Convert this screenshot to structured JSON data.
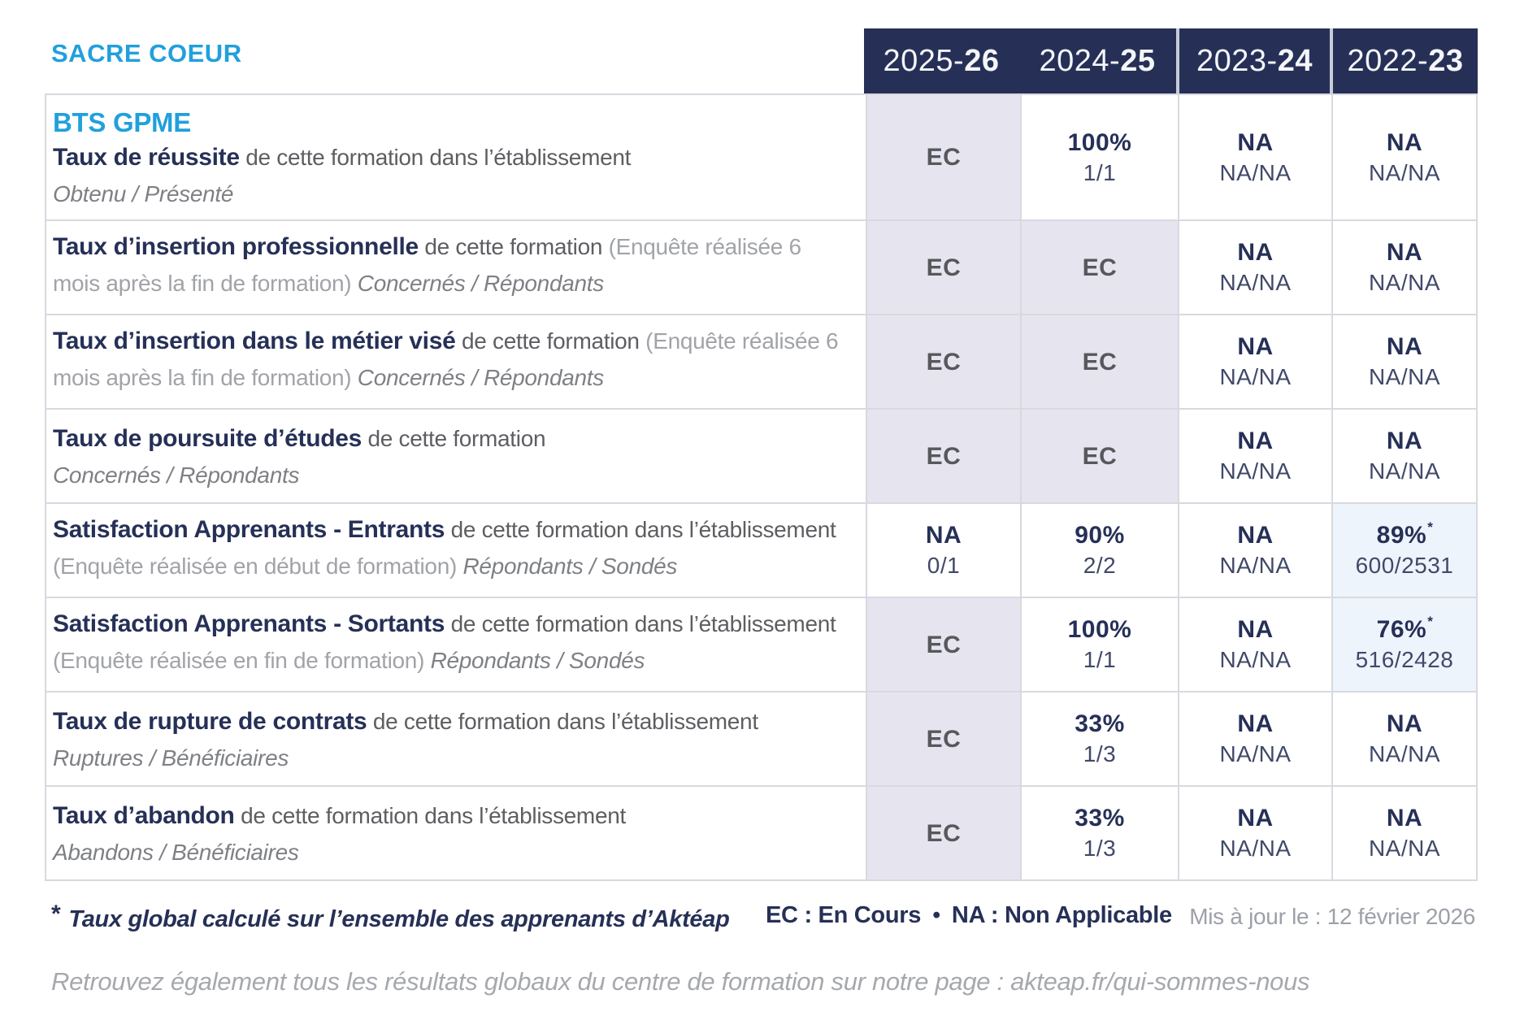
{
  "colors": {
    "navy": "#263057",
    "bright_blue": "#21a0dc",
    "lavender": "#e6e5ef",
    "light_blue": "#eef4fb"
  },
  "header": {
    "school": "SACRE COEUR",
    "years": [
      {
        "prefix": "2025-",
        "suffix": "26"
      },
      {
        "prefix": "2024-",
        "suffix": "25"
      },
      {
        "prefix": "2023-",
        "suffix": "24"
      },
      {
        "prefix": "2022-",
        "suffix": "23"
      }
    ]
  },
  "table": {
    "star_symbol": "*",
    "rows": [
      {
        "heading": "BTS GPME",
        "segments": [
          {
            "s": "title",
            "t": "Taux de réussite"
          },
          {
            "s": "desc",
            "t": " de cette formation dans l’établissement"
          }
        ],
        "sub_line": "Obtenu / Présenté",
        "cells": [
          {
            "type": "ec",
            "main": "EC"
          },
          {
            "type": "plain",
            "main": "100%",
            "sub": "1/1"
          },
          {
            "type": "plain",
            "main": "NA",
            "sub": "NA/NA"
          },
          {
            "type": "plain",
            "main": "NA",
            "sub": "NA/NA"
          }
        ]
      },
      {
        "segments": [
          {
            "s": "title",
            "t": "Taux d’insertion professionnelle"
          },
          {
            "s": "desc",
            "t": " de cette formation "
          },
          {
            "s": "paren",
            "t": "(Enquête réalisée 6 mois après la fin de formation) "
          },
          {
            "s": "it",
            "t": "Concernés / Répondants"
          }
        ],
        "sub_line": null,
        "cells": [
          {
            "type": "ec",
            "main": "EC"
          },
          {
            "type": "ec",
            "main": "EC"
          },
          {
            "type": "plain",
            "main": "NA",
            "sub": "NA/NA"
          },
          {
            "type": "plain",
            "main": "NA",
            "sub": "NA/NA"
          }
        ]
      },
      {
        "segments": [
          {
            "s": "title",
            "t": "Taux d’insertion dans le métier visé"
          },
          {
            "s": "desc",
            "t": " de cette formation "
          },
          {
            "s": "paren",
            "t": "(Enquête réalisée 6 mois après la fin de formation) "
          },
          {
            "s": "it",
            "t": "Concernés / Répondants"
          }
        ],
        "sub_line": null,
        "cells": [
          {
            "type": "ec",
            "main": "EC"
          },
          {
            "type": "ec",
            "main": "EC"
          },
          {
            "type": "plain",
            "main": "NA",
            "sub": "NA/NA"
          },
          {
            "type": "plain",
            "main": "NA",
            "sub": "NA/NA"
          }
        ]
      },
      {
        "segments": [
          {
            "s": "title",
            "t": "Taux de poursuite d’études"
          },
          {
            "s": "desc",
            "t": " de cette formation"
          }
        ],
        "sub_line": "Concernés / Répondants",
        "cells": [
          {
            "type": "ec",
            "main": "EC"
          },
          {
            "type": "ec",
            "main": "EC"
          },
          {
            "type": "plain",
            "main": "NA",
            "sub": "NA/NA"
          },
          {
            "type": "plain",
            "main": "NA",
            "sub": "NA/NA"
          }
        ]
      },
      {
        "segments": [
          {
            "s": "title",
            "t": "Satisfaction Apprenants - Entrants"
          },
          {
            "s": "desc",
            "t": " de cette formation dans l’établissement "
          },
          {
            "s": "paren",
            "t": "(Enquête réalisée en début de formation) "
          },
          {
            "s": "it",
            "t": "Répondants / Sondés"
          }
        ],
        "sub_line": null,
        "cells": [
          {
            "type": "plain",
            "main": "NA",
            "sub": "0/1"
          },
          {
            "type": "plain",
            "main": "90%",
            "sub": "2/2"
          },
          {
            "type": "plain",
            "main": "NA",
            "sub": "NA/NA"
          },
          {
            "type": "star",
            "main": "89%",
            "star": true,
            "sub": "600/2531"
          }
        ]
      },
      {
        "segments": [
          {
            "s": "title",
            "t": "Satisfaction Apprenants - Sortants"
          },
          {
            "s": "desc",
            "t": " de cette formation dans l’établissement "
          },
          {
            "s": "paren",
            "t": "(Enquête réalisée en fin de formation) "
          },
          {
            "s": "it",
            "t": "Répondants / Sondés"
          }
        ],
        "sub_line": null,
        "cells": [
          {
            "type": "ec",
            "main": "EC"
          },
          {
            "type": "plain",
            "main": "100%",
            "sub": "1/1"
          },
          {
            "type": "plain",
            "main": "NA",
            "sub": "NA/NA"
          },
          {
            "type": "star",
            "main": "76%",
            "star": true,
            "sub": "516/2428"
          }
        ]
      },
      {
        "segments": [
          {
            "s": "title",
            "t": "Taux de rupture de contrats"
          },
          {
            "s": "desc",
            "t": " de cette formation dans l’établissement"
          }
        ],
        "sub_line": "Ruptures / Bénéficiaires",
        "cells": [
          {
            "type": "ec",
            "main": "EC"
          },
          {
            "type": "plain",
            "main": "33%",
            "sub": "1/3"
          },
          {
            "type": "plain",
            "main": "NA",
            "sub": "NA/NA"
          },
          {
            "type": "plain",
            "main": "NA",
            "sub": "NA/NA"
          }
        ]
      },
      {
        "segments": [
          {
            "s": "title",
            "t": "Taux d’abandon"
          },
          {
            "s": "desc",
            "t": " de cette formation dans l’établissement"
          }
        ],
        "sub_line": "Abandons / Bénéficiaires",
        "cells": [
          {
            "type": "ec",
            "main": "EC"
          },
          {
            "type": "plain",
            "main": "33%",
            "sub": "1/3"
          },
          {
            "type": "plain",
            "main": "NA",
            "sub": "NA/NA"
          },
          {
            "type": "plain",
            "main": "NA",
            "sub": "NA/NA"
          }
        ]
      }
    ]
  },
  "footer": {
    "star": "*",
    "footnote": "Taux global calculé sur l’ensemble des apprenants d’Aktéap",
    "legend_ec": "EC : En Cours",
    "legend_sep": "•",
    "legend_na": "NA : Non Applicable",
    "updated": "Mis à jour le : 12 février 2026",
    "bottom_note": "Retrouvez également tous les résultats globaux du centre de formation sur notre page : akteap.fr/qui-sommes-nous"
  }
}
